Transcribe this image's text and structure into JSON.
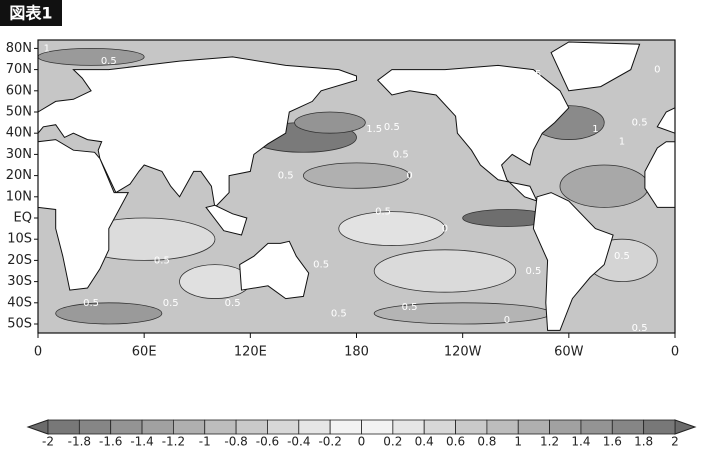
{
  "figure_label": "図表1",
  "lat_labels": [
    "80N",
    "70N",
    "60N",
    "50N",
    "40N",
    "30N",
    "20N",
    "10N",
    "EQ",
    "10S",
    "20S",
    "30S",
    "40S",
    "50S"
  ],
  "lon_labels": [
    "0",
    "60E",
    "120E",
    "180",
    "120W",
    "60W",
    "0"
  ],
  "contour_labels": [
    "1",
    "0.5",
    "0.5",
    "0.5",
    "1.5",
    "0.5",
    "0.5",
    "0",
    "0.5",
    "0.5",
    "0",
    "0.5",
    "0.5",
    "0.5",
    "0.5",
    "0.5",
    "1",
    "1",
    "0.5",
    "0.5",
    "0",
    "0.5",
    "0.5",
    "0.5",
    "0.5",
    "0",
    "0.5"
  ],
  "colorbar_ticks": [
    -2,
    -1.8,
    -1.6,
    -1.4,
    -1.2,
    -1,
    -0.8,
    -0.6,
    -0.4,
    -0.2,
    0,
    0.2,
    0.4,
    0.6,
    0.8,
    1,
    1.2,
    1.4,
    1.6,
    1.8,
    2
  ]
}
